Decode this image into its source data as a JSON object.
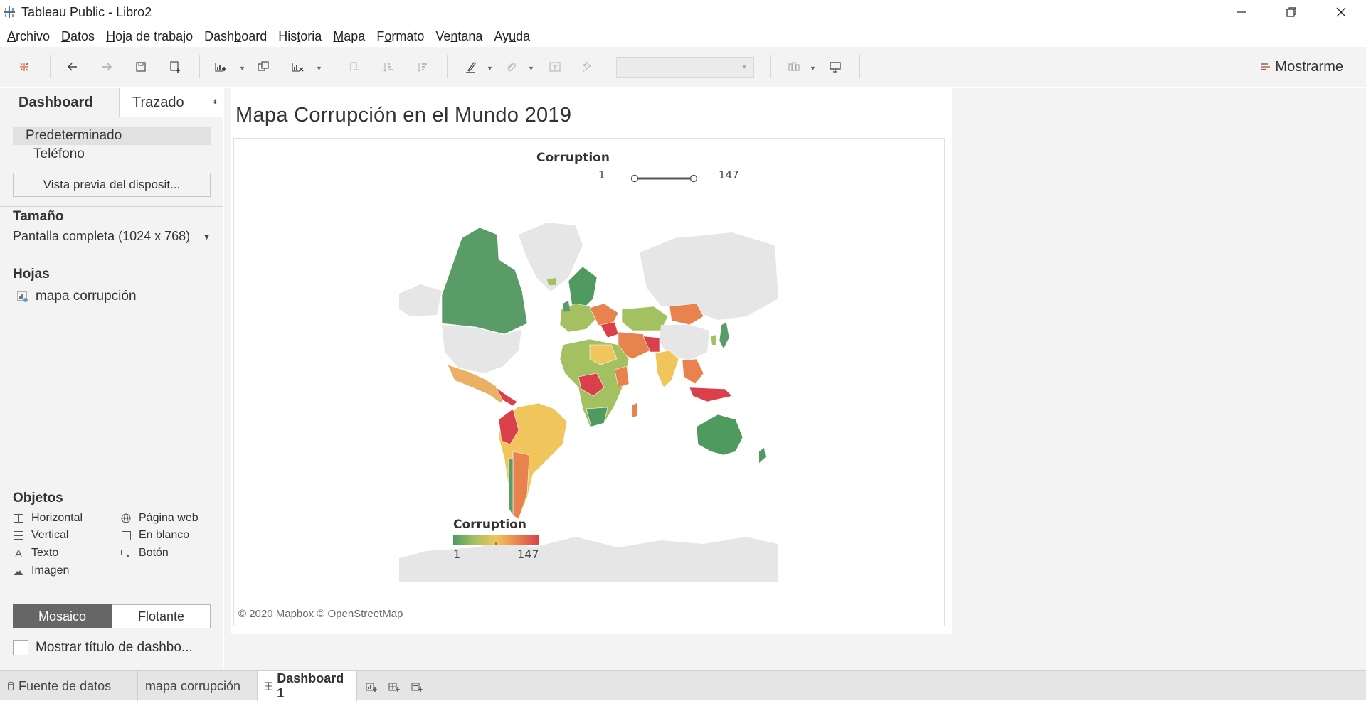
{
  "window": {
    "title": "Tableau Public - Libro2"
  },
  "menu": {
    "items": [
      {
        "label": "Archivo",
        "key": "A"
      },
      {
        "label": "Datos",
        "key": "D"
      },
      {
        "label": "Hoja de trabajo",
        "key": "H"
      },
      {
        "label": "Dashboard",
        "key": "b"
      },
      {
        "label": "Historia",
        "key": "t"
      },
      {
        "label": "Mapa",
        "key": "M"
      },
      {
        "label": "Formato",
        "key": "o"
      },
      {
        "label": "Ventana",
        "key": "n"
      },
      {
        "label": "Ayuda",
        "key": "u"
      }
    ]
  },
  "toolbar": {
    "show_me_label": "Mostrarme"
  },
  "left_panel": {
    "tabs": [
      "Dashboard",
      "Trazado"
    ],
    "devices": {
      "default": "Predeterminado",
      "phone": "Teléfono",
      "preview_button": "Vista previa del disposit..."
    },
    "size": {
      "heading": "Tamaño",
      "value": "Pantalla completa (1024 x 768)"
    },
    "sheets": {
      "heading": "Hojas",
      "items": [
        "mapa corrupción"
      ]
    },
    "objects": {
      "heading": "Objetos",
      "items": [
        "Horizontal",
        "Página web",
        "Vertical",
        "En blanco",
        "Texto",
        "Botón",
        "Imagen"
      ]
    },
    "layout_mode": [
      "Mosaico",
      "Flotante"
    ],
    "show_title_label": "Mostrar título de dashbo..."
  },
  "dashboard": {
    "title": "Mapa Corrupción en el Mundo 2019",
    "filter": {
      "label": "Corruption",
      "min": "1",
      "max": "147"
    },
    "legend": {
      "label": "Corruption",
      "min": "1",
      "max": "147",
      "colors": [
        "#4e9a5f",
        "#a4c162",
        "#f0c55c",
        "#e8834e",
        "#d9404a"
      ]
    },
    "attribution": "© 2020 Mapbox © OpenStreetMap"
  },
  "bottom_tabs": {
    "datasource": "Fuente de datos",
    "sheet": "mapa corrupción",
    "dashboard": "Dashboard 1"
  }
}
